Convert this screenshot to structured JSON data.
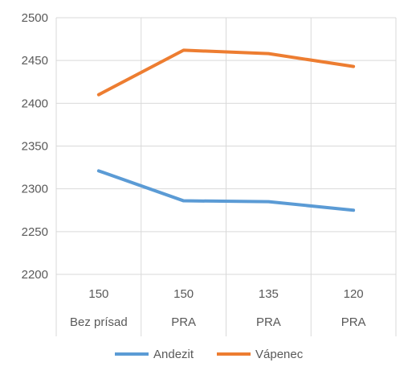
{
  "chart_data": {
    "type": "line",
    "categories": [
      [
        "150",
        "Bez prísad"
      ],
      [
        "150",
        "PRA"
      ],
      [
        "135",
        "PRA"
      ],
      [
        "120",
        "PRA"
      ]
    ],
    "series": [
      {
        "name": "Andezit",
        "color": "#5B9BD5",
        "values": [
          2321,
          2286,
          2285,
          2275
        ]
      },
      {
        "name": "Vápenec",
        "color": "#ED7D31",
        "values": [
          2410,
          2462,
          2458,
          2443
        ]
      }
    ],
    "ylim": [
      2200,
      2500
    ],
    "ytick_step": 50,
    "yticks": [
      "2200",
      "2250",
      "2300",
      "2350",
      "2400",
      "2450",
      "2500"
    ],
    "grid": true,
    "legend_position": "bottom"
  }
}
